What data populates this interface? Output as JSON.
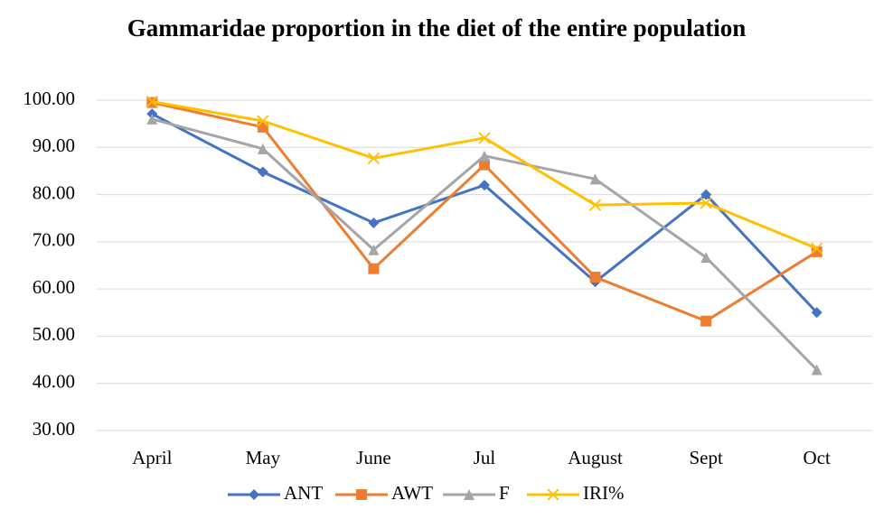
{
  "chart_data": {
    "type": "line",
    "title": "Gammaridae proportion in the diet of the entire population",
    "categories": [
      "April",
      "May",
      "June",
      "Jul",
      "August",
      "Sept",
      "Oct"
    ],
    "series": [
      {
        "name": "ANT",
        "color": "#4472c4",
        "marker": "diamond",
        "values": [
          97.1,
          84.8,
          74.0,
          82.0,
          61.5,
          80.0,
          55.0
        ]
      },
      {
        "name": "AWT",
        "color": "#ed7d31",
        "marker": "square",
        "values": [
          99.5,
          94.3,
          64.3,
          86.3,
          62.5,
          53.2,
          67.9
        ]
      },
      {
        "name": "F",
        "color": "#a5a5a5",
        "marker": "triangle",
        "values": [
          96.0,
          89.7,
          68.3,
          88.2,
          83.3,
          66.7,
          42.9
        ]
      },
      {
        "name": "IRI%",
        "color": "#ffc000",
        "marker": "x",
        "values": [
          99.7,
          95.6,
          87.7,
          92.0,
          77.8,
          78.2,
          68.6
        ]
      }
    ],
    "ylim": [
      30,
      100
    ],
    "yticks": [
      {
        "value": 30,
        "label": "30.00"
      },
      {
        "value": 40,
        "label": "40.00"
      },
      {
        "value": 50,
        "label": "50.00"
      },
      {
        "value": 60,
        "label": "60.00"
      },
      {
        "value": 70,
        "label": "70.00"
      },
      {
        "value": 80,
        "label": "80.00"
      },
      {
        "value": 90,
        "label": "90.00"
      },
      {
        "value": 100,
        "label": "100.00"
      }
    ],
    "grid": true,
    "legend": "bottom"
  }
}
